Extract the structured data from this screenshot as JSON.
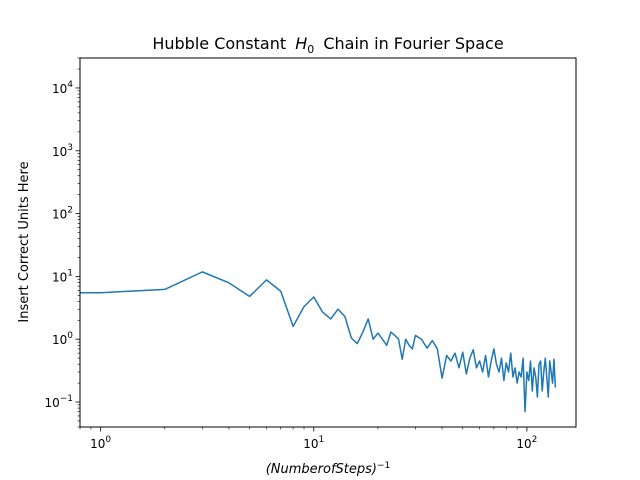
{
  "chart_data": {
    "type": "line",
    "title": "Hubble Constant",
    "title_symbol": "H",
    "title_symbol_sub": "0",
    "title_suffix": "Chain in Fourier Space",
    "xlabel": "(NumberofSteps)",
    "xlabel_exponent": "−1",
    "ylabel": "Insert Correct Units Here",
    "xscale": "log",
    "yscale": "log",
    "xlim": [
      0.8,
      170
    ],
    "ylim": [
      0.04,
      30000
    ],
    "grid": false,
    "x_ticks": [
      {
        "value": 1,
        "base": "10",
        "exp": "0"
      },
      {
        "value": 10,
        "base": "10",
        "exp": "1"
      },
      {
        "value": 100,
        "base": "10",
        "exp": "2"
      }
    ],
    "y_ticks": [
      {
        "value": 0.1,
        "base": "10",
        "exp": "−1"
      },
      {
        "value": 1,
        "base": "10",
        "exp": "0"
      },
      {
        "value": 10,
        "base": "10",
        "exp": "1"
      },
      {
        "value": 100,
        "base": "10",
        "exp": "2"
      },
      {
        "value": 1000,
        "base": "10",
        "exp": "3"
      },
      {
        "value": 10000,
        "base": "10",
        "exp": "4"
      }
    ],
    "series": [
      {
        "color": "#1f77b4",
        "points": [
          [
            0.8,
            5.5
          ],
          [
            1,
            5.5
          ],
          [
            2,
            6.2
          ],
          [
            3,
            11.8
          ],
          [
            4,
            7.9
          ],
          [
            5,
            4.8
          ],
          [
            6,
            8.8
          ],
          [
            7,
            5.8
          ],
          [
            8,
            1.6
          ],
          [
            9,
            3.3
          ],
          [
            10,
            4.7
          ],
          [
            11,
            2.7
          ],
          [
            12,
            2.1
          ],
          [
            13,
            3.0
          ],
          [
            14,
            2.3
          ],
          [
            15,
            1.05
          ],
          [
            16,
            0.85
          ],
          [
            17,
            1.3
          ],
          [
            18,
            2.1
          ],
          [
            19,
            1.0
          ],
          [
            20,
            1.25
          ],
          [
            21,
            1.0
          ],
          [
            22,
            0.8
          ],
          [
            23,
            1.3
          ],
          [
            24,
            1.15
          ],
          [
            25,
            1.0
          ],
          [
            26,
            0.48
          ],
          [
            27,
            1.0
          ],
          [
            28,
            0.8
          ],
          [
            29,
            0.7
          ],
          [
            30,
            1.15
          ],
          [
            32,
            1.0
          ],
          [
            34,
            0.72
          ],
          [
            36,
            0.95
          ],
          [
            38,
            0.7
          ],
          [
            40,
            0.24
          ],
          [
            42,
            0.55
          ],
          [
            44,
            0.45
          ],
          [
            46,
            0.6
          ],
          [
            48,
            0.35
          ],
          [
            50,
            0.62
          ],
          [
            52,
            0.28
          ],
          [
            54,
            0.5
          ],
          [
            56,
            0.68
          ],
          [
            58,
            0.35
          ],
          [
            60,
            0.45
          ],
          [
            62,
            0.3
          ],
          [
            64,
            0.55
          ],
          [
            66,
            0.25
          ],
          [
            68,
            0.45
          ],
          [
            70,
            0.7
          ],
          [
            72,
            0.4
          ],
          [
            74,
            0.3
          ],
          [
            76,
            0.5
          ],
          [
            78,
            0.22
          ],
          [
            80,
            0.42
          ],
          [
            82,
            0.3
          ],
          [
            84,
            0.6
          ],
          [
            86,
            0.25
          ],
          [
            88,
            0.35
          ],
          [
            90,
            0.2
          ],
          [
            92,
            0.3
          ],
          [
            94,
            0.25
          ],
          [
            96,
            0.5
          ],
          [
            98,
            0.07
          ],
          [
            100,
            0.3
          ],
          [
            102,
            0.22
          ],
          [
            104,
            0.45
          ],
          [
            106,
            0.15
          ],
          [
            108,
            0.35
          ],
          [
            110,
            0.25
          ],
          [
            112,
            0.12
          ],
          [
            114,
            0.4
          ],
          [
            116,
            0.45
          ],
          [
            118,
            0.15
          ],
          [
            120,
            0.3
          ],
          [
            122,
            0.5
          ],
          [
            124,
            0.25
          ],
          [
            126,
            0.12
          ],
          [
            128,
            0.45
          ],
          [
            130,
            0.3
          ],
          [
            132,
            0.2
          ],
          [
            134,
            0.48
          ],
          [
            136,
            0.17
          ]
        ]
      }
    ]
  }
}
